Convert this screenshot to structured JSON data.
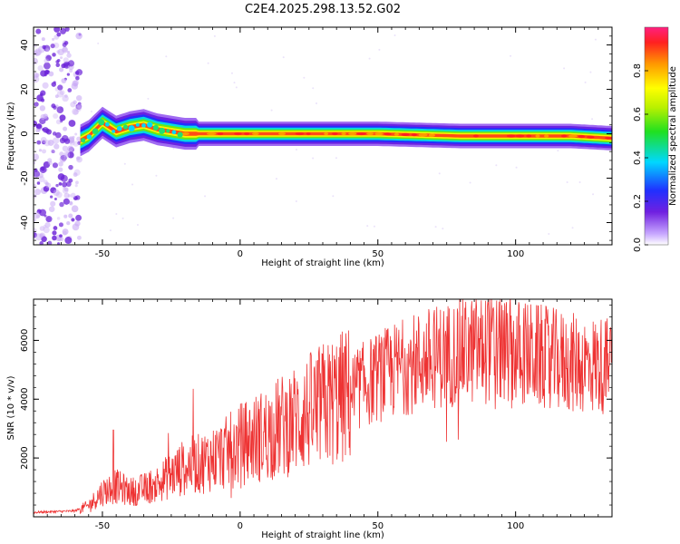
{
  "title": "C2E4.2025.298.13.52.G02",
  "chart_data": [
    {
      "type": "heatmap",
      "panel": "spectrogram",
      "xlabel": "Height of straight line (km)",
      "ylabel": "Frequency (Hz)",
      "xlim": [
        -75,
        135
      ],
      "ylim": [
        -50,
        48
      ],
      "x_ticks": [
        -50,
        0,
        50,
        100
      ],
      "x_tick_labels": [
        "-50",
        "0",
        "50",
        "100"
      ],
      "y_ticks": [
        -40,
        -20,
        0,
        20,
        40
      ],
      "y_tick_labels": [
        "-40",
        "-20",
        "0",
        "20",
        "40"
      ],
      "signal_start_km": -58,
      "ridge": {
        "x": [
          -58,
          -55,
          -50,
          -45,
          -40,
          -35,
          -30,
          -25,
          -20,
          -10,
          0,
          20,
          50,
          80,
          100,
          120,
          135
        ],
        "freq_hz": [
          -3,
          -1,
          5,
          1,
          3,
          4,
          2,
          1,
          0,
          0,
          0,
          0,
          0,
          -1,
          -1,
          -1,
          -2
        ]
      },
      "colorbar": {
        "label": "Normalized spectral amplitude",
        "range": [
          0,
          1
        ],
        "ticks": [
          0.0,
          0.2,
          0.4,
          0.6,
          0.8
        ],
        "tick_labels": [
          "0.0",
          "0.2",
          "0.4",
          "0.6",
          "0.8"
        ]
      }
    },
    {
      "type": "line",
      "panel": "snr",
      "xlabel": "Height of straight line (km)",
      "ylabel": "SNR (10 * v/v)",
      "xlim": [
        -75,
        135
      ],
      "ylim": [
        0,
        7400
      ],
      "x_ticks": [
        -50,
        0,
        50,
        100
      ],
      "x_tick_labels": [
        "-50",
        "0",
        "50",
        "100"
      ],
      "y_ticks": [
        2000,
        4000,
        6000
      ],
      "y_tick_labels": [
        "2000",
        "4000",
        "6000"
      ],
      "color": "#ee3333",
      "series": [
        {
          "name": "SNR",
          "x": [
            -75,
            -60,
            -55,
            -50,
            -45,
            -40,
            -35,
            -30,
            -25,
            -20,
            -15,
            -10,
            -5,
            0,
            10,
            20,
            30,
            40,
            50,
            60,
            70,
            80,
            90,
            100,
            110,
            120,
            135
          ],
          "envelope": [
            150,
            200,
            400,
            900,
            1100,
            900,
            1000,
            1200,
            1500,
            1800,
            1900,
            2100,
            2300,
            2600,
            3000,
            3500,
            4000,
            4400,
            4900,
            5300,
            5600,
            5800,
            5900,
            5800,
            5600,
            5400,
            5300
          ]
        }
      ],
      "spikes": [
        {
          "x": -46,
          "value": 2950
        },
        {
          "x": -26,
          "value": 2850
        },
        {
          "x": -17,
          "value": 4350
        },
        {
          "x": 90,
          "value": 7300
        },
        {
          "x": 95,
          "value": 7200
        }
      ]
    }
  ]
}
